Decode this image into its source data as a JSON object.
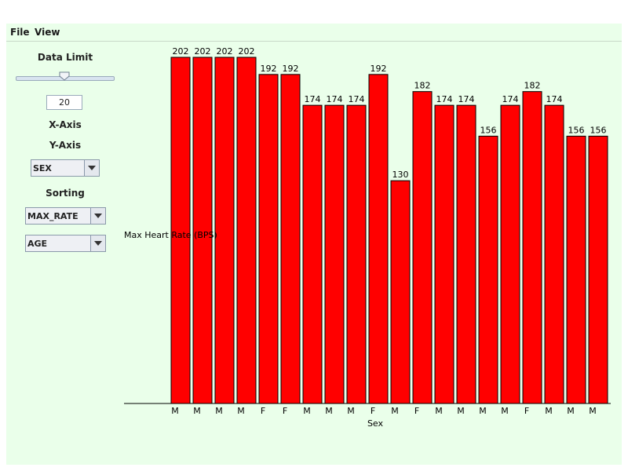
{
  "menu": {
    "file_label": "File",
    "view_label": "View"
  },
  "sidebar": {
    "data_limit_label": "Data Limit",
    "data_limit_value": "20",
    "slider_fraction": 0.5,
    "x_axis_label": "X-Axis",
    "y_axis_label": "Y-Axis",
    "y_axis_selected": "SEX",
    "sorting_label": "Sorting",
    "sort_primary_selected": "MAX_RATE",
    "sort_secondary_selected": "AGE"
  },
  "chart_data": {
    "type": "bar",
    "categories": [
      "M",
      "M",
      "M",
      "M",
      "F",
      "F",
      "M",
      "M",
      "M",
      "F",
      "M",
      "F",
      "M",
      "M",
      "M",
      "M",
      "F",
      "M",
      "M",
      "M"
    ],
    "values": [
      202,
      202,
      202,
      202,
      192,
      192,
      174,
      174,
      174,
      192,
      130,
      182,
      174,
      174,
      156,
      174,
      182,
      174,
      156,
      156
    ],
    "xlabel": "Sex",
    "ylabel": "Max Heart Rate (BPS)",
    "bar_color": "#ff0000",
    "grid": false,
    "ylim": [
      0,
      202
    ]
  }
}
